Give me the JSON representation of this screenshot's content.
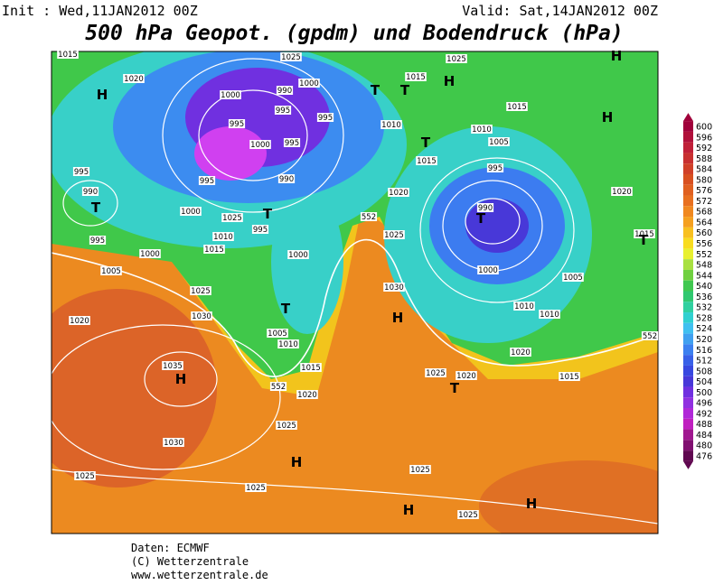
{
  "header": {
    "init": "Init : Wed,11JAN2012 00Z",
    "valid": "Valid: Sat,14JAN2012 00Z",
    "title": "500 hPa Geopot. (gpdm) und Bodendruck (hPa)"
  },
  "colorbar": {
    "levels": [
      "600",
      "596",
      "592",
      "588",
      "584",
      "580",
      "576",
      "572",
      "568",
      "564",
      "560",
      "556",
      "552",
      "548",
      "544",
      "540",
      "536",
      "532",
      "528",
      "524",
      "520",
      "516",
      "512",
      "508",
      "504",
      "500",
      "496",
      "492",
      "488",
      "484",
      "480",
      "476"
    ],
    "colors": [
      "#a0003a",
      "#b0103a",
      "#c02038",
      "#c83030",
      "#d04028",
      "#d85020",
      "#e06020",
      "#e87020",
      "#f08820",
      "#f5a020",
      "#f8c020",
      "#f8dc20",
      "#e8f030",
      "#a8e040",
      "#70d040",
      "#40c850",
      "#30c870",
      "#30d0a0",
      "#30d0d0",
      "#40c0f0",
      "#40a0f0",
      "#3c80f0",
      "#3860e8",
      "#3848e0",
      "#4838d8",
      "#7030e0",
      "#9030e0",
      "#b028d8",
      "#c020c0",
      "#a01890",
      "#801070",
      "#600850"
    ]
  },
  "map_labels": [
    "1015",
    "1020",
    "H",
    "1025",
    "1000",
    "990",
    "1000",
    "995",
    "995",
    "995",
    "1000",
    "995",
    "T",
    "T",
    "1015",
    "1025",
    "H",
    "H",
    "1015",
    "H",
    "1010",
    "1010",
    "1005",
    "T",
    "1015",
    "995",
    "995",
    "990",
    "T",
    "995",
    "990",
    "1000",
    "1025",
    "T",
    "995",
    "1020",
    "552",
    "990",
    "T",
    "1020",
    "1025",
    "1010",
    "1015",
    "995",
    "1000",
    "1000",
    "1005",
    "1000",
    "1005",
    "1025",
    "1030",
    "H",
    "1010",
    "1010",
    "T",
    "1020",
    "1030",
    "1005",
    "1010",
    "1020",
    "1015",
    "1015",
    "1035",
    "H",
    "552",
    "1020",
    "1025",
    "1020",
    "T",
    "1015",
    "T",
    "552",
    "1025",
    "1030",
    "H",
    "1025",
    "1025",
    "1025",
    "H",
    "H",
    "1025"
  ],
  "footer": [
    "Daten: ECMWF",
    "(C) Wetterzentrale",
    "www.wetterzentrale.de"
  ]
}
